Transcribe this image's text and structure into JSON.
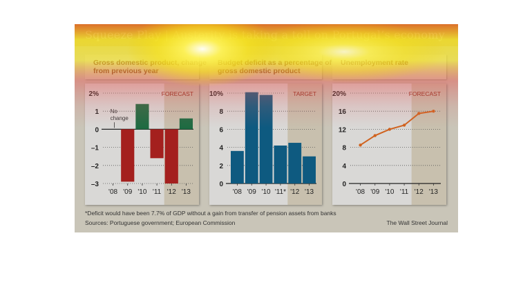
{
  "header": {
    "title": "Squeeze Play | Austerity is taking a toll on Portugal’s economy"
  },
  "chart_data": [
    {
      "type": "bar",
      "title": "Gross domestic product, change from previous year",
      "categories": [
        "'08",
        "'09",
        "'10",
        "'11",
        "'12",
        "'13"
      ],
      "values": [
        0,
        -2.9,
        1.4,
        -1.6,
        -3.0,
        0.6
      ],
      "ylim": [
        -3,
        2
      ],
      "yticks": [
        "2%",
        "1",
        "0",
        "–1",
        "–2",
        "–3"
      ],
      "ytick_values": [
        2,
        1,
        0,
        -1,
        -2,
        -3
      ],
      "annotation": "No change",
      "shaded_label": "FORECAST",
      "shaded_from_index": 4,
      "colors": {
        "positive": "#1e6b42",
        "negative": "#a4201e"
      },
      "grid": true
    },
    {
      "type": "bar",
      "title": "Budget deficit as a percentage of gross domestic product",
      "categories": [
        "'08",
        "'09",
        "'10",
        "'11*",
        "'12",
        "'13"
      ],
      "values": [
        3.6,
        10.1,
        9.8,
        4.2,
        4.5,
        3.0
      ],
      "ylim": [
        0,
        10
      ],
      "yticks": [
        "10%",
        "8",
        "6",
        "4",
        "2",
        "0"
      ],
      "ytick_values": [
        10,
        8,
        6,
        4,
        2,
        0
      ],
      "shaded_label": "TARGET",
      "shaded_from_index": 4,
      "colors": {
        "bar": "#0e5a80"
      },
      "grid": true
    },
    {
      "type": "line",
      "title": "Unemployment rate",
      "categories": [
        "'08",
        "'09",
        "'10",
        "'11",
        "'12",
        "'13"
      ],
      "values": [
        8.5,
        10.6,
        12.0,
        12.9,
        15.5,
        16.0
      ],
      "ylim": [
        0,
        20
      ],
      "yticks": [
        "20%",
        "16",
        "12",
        "8",
        "4",
        "0"
      ],
      "ytick_values": [
        20,
        16,
        12,
        8,
        4,
        0
      ],
      "shaded_label": "FORECAST",
      "shaded_from_index": 4,
      "colors": {
        "line": "#d0621e"
      },
      "grid": true
    }
  ],
  "footer": {
    "note": "*Deficit would have been 7.7% of GDP without a gain from transfer of pension assets from banks",
    "sources": "Sources: Portuguese government; European Commission",
    "credit": "The Wall Street Journal"
  }
}
